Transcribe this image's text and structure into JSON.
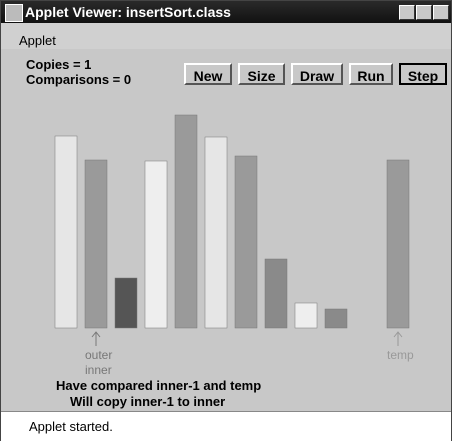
{
  "window": {
    "title": "Applet Viewer: insertSort.class",
    "menu": [
      "Applet"
    ]
  },
  "counters": [
    "Copies = 1",
    "Comparisons = 0"
  ],
  "buttons": [
    "New",
    "Size",
    "Draw",
    "Run",
    "Step"
  ],
  "bars": {
    "values": [
      192,
      168,
      50,
      167,
      213,
      191,
      172,
      69,
      25,
      19
    ],
    "colors": [
      "#e6e6e6",
      "#9a9a9a",
      "#555555",
      "#eeeeee",
      "#9a9a9a",
      "#e6e6e6",
      "#9a9a9a",
      "#8a8a8a",
      "#eeeeee",
      "#8a8a8a"
    ]
  },
  "temp": {
    "value": 168,
    "color": "#9a9a9a",
    "label": "temp"
  },
  "pointers": [
    "outer",
    "inner"
  ],
  "messages": [
    "Have compared inner-1 and temp",
    "Will copy inner-1 to inner"
  ],
  "status": "Applet started."
}
